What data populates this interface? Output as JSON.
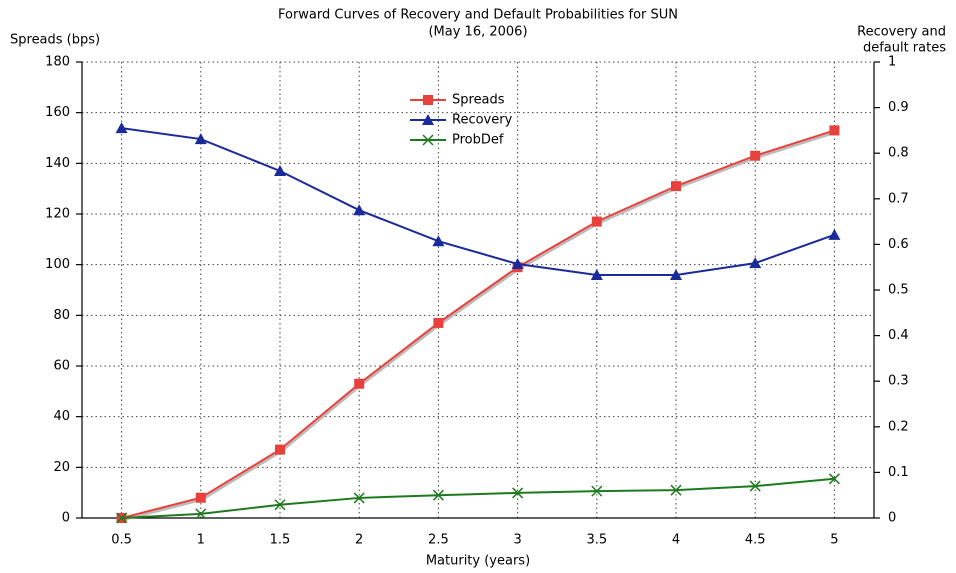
{
  "chart_data": {
    "type": "line",
    "title": "Forward Curves of Recovery and Default Probabilities for SUN",
    "subtitle": "(May 16, 2006)",
    "ylabel": "Spreads (bps)",
    "y2label": [
      "Recovery and",
      "default rates"
    ],
    "xlabel": "Maturity (years)",
    "categories": [
      "0.5",
      "1",
      "1.5",
      "2",
      "2.5",
      "3",
      "3.5",
      "4",
      "4.5",
      "5"
    ],
    "series": [
      {
        "name": "Spreads",
        "color": "#e8413c",
        "marker": "square",
        "values": [
          0,
          8,
          27,
          53,
          77,
          99,
          117,
          131,
          143,
          153
        ]
      },
      {
        "name": "Recovery",
        "color": "#1a2a9a",
        "marker": "triangle",
        "axis": "y2",
        "values": [
          0.855,
          0.831,
          0.761,
          0.675,
          0.607,
          0.557,
          0.533,
          0.533,
          0.559,
          0.621
        ]
      },
      {
        "name": "ProbDef",
        "color": "#1e7a1e",
        "marker": "x",
        "axis": "y2",
        "values": [
          0,
          0.009,
          0.029,
          0.044,
          0.05,
          0.055,
          0.059,
          0.061,
          0.07,
          0.086
        ]
      }
    ],
    "ylim": [
      0,
      180
    ],
    "yticks": [
      0,
      20,
      40,
      60,
      80,
      100,
      120,
      140,
      160,
      180
    ],
    "y2lim": [
      0,
      1
    ],
    "y2ticks": [
      0,
      0.1,
      0.2,
      0.3,
      0.4,
      0.5,
      0.6,
      0.7,
      0.8,
      0.9,
      1
    ],
    "grid": true,
    "legend": "top"
  }
}
